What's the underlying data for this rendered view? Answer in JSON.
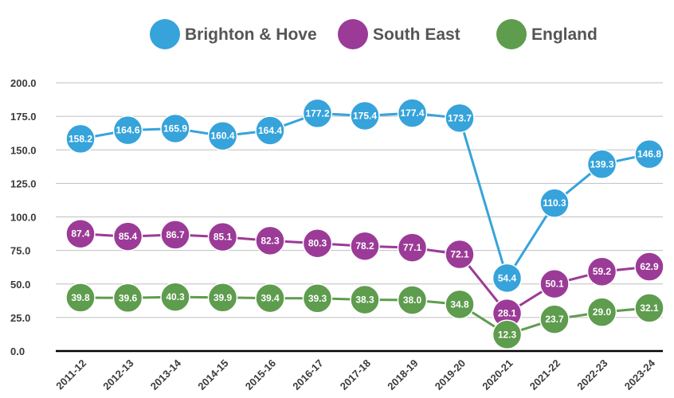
{
  "colors": {
    "brighton": "#36A3DB",
    "southeast": "#9B3B97",
    "england": "#5E9C4E",
    "grid": "#bfbfbf",
    "axis": "#000000"
  },
  "chart_data": {
    "type": "line",
    "categories": [
      "2011-12",
      "2012-13",
      "2013-14",
      "2014-15",
      "2015-16",
      "2016-17",
      "2017-18",
      "2018-19",
      "2019-20",
      "2020-21",
      "2021-22",
      "2022-23",
      "2023-24"
    ],
    "series": [
      {
        "name": "Brighton & Hove",
        "color": "#36A3DB",
        "values": [
          158.2,
          164.6,
          165.9,
          160.4,
          164.4,
          177.2,
          175.4,
          177.4,
          173.7,
          54.4,
          110.3,
          139.3,
          146.8
        ],
        "labels": [
          "158.2",
          "164.6",
          "165.9",
          "160.4",
          "164.4",
          "177.2",
          "175.4",
          "177.4",
          "173.7",
          "54.4",
          "110.3",
          "139.3",
          "146.8"
        ]
      },
      {
        "name": "South East",
        "color": "#9B3B97",
        "values": [
          87.4,
          85.4,
          86.7,
          85.1,
          82.3,
          80.3,
          78.2,
          77.1,
          72.1,
          28.1,
          50.1,
          59.2,
          62.9
        ],
        "labels": [
          "87.4",
          "85.4",
          "86.7",
          "85.1",
          "82.3",
          "80.3",
          "78.2",
          "77.1",
          "72.1",
          "28.1",
          "50.1",
          "59.2",
          "62.9"
        ]
      },
      {
        "name": "England",
        "color": "#5E9C4E",
        "values": [
          39.8,
          39.6,
          40.3,
          39.9,
          39.4,
          39.3,
          38.3,
          38.0,
          34.8,
          12.3,
          23.7,
          29.0,
          32.1
        ],
        "labels": [
          "39.8",
          "39.6",
          "40.3",
          "39.9",
          "39.4",
          "39.3",
          "38.3",
          "38.0",
          "34.8",
          "12.3",
          "23.7",
          "29.0",
          "32.1"
        ]
      }
    ],
    "y_ticks": [
      {
        "value": 0,
        "label": "0.0"
      },
      {
        "value": 25,
        "label": "25.0"
      },
      {
        "value": 50,
        "label": "50.0"
      },
      {
        "value": 75,
        "label": "75.0"
      },
      {
        "value": 100,
        "label": "100.0"
      },
      {
        "value": 125,
        "label": "125.0"
      },
      {
        "value": 150,
        "label": "150.0"
      },
      {
        "value": 175,
        "label": "175.0"
      },
      {
        "value": 200,
        "label": "200.0"
      }
    ],
    "ylim": [
      0,
      200
    ],
    "title": "",
    "xlabel": "",
    "ylabel": "",
    "grid": true,
    "legend_position": "top"
  }
}
